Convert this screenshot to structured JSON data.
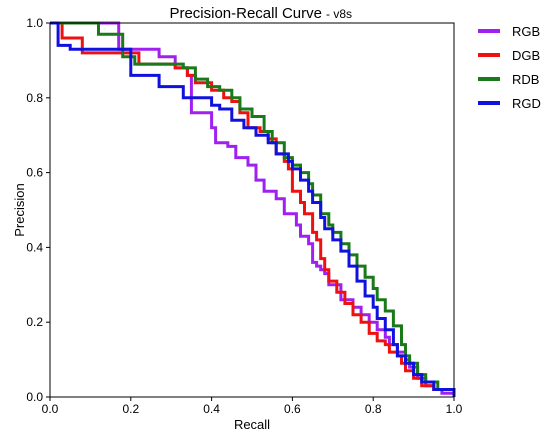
{
  "chart_data": {
    "type": "line",
    "title": "Precision-Recall Curve",
    "subtitle": "- v8s",
    "xlabel": "Recall",
    "ylabel": "Precision",
    "xlim": [
      0,
      1
    ],
    "ylim": [
      0,
      1
    ],
    "xticks": [
      "0.0",
      "0.2",
      "0.4",
      "0.6",
      "0.8",
      "1.0"
    ],
    "yticks": [
      "0.0",
      "0.2",
      "0.4",
      "0.6",
      "0.8",
      "1.0"
    ],
    "grid": false,
    "legend_position": "outside-right-top",
    "series": [
      {
        "name": "RGB",
        "color": "#a020f0",
        "points": [
          [
            0,
            1
          ],
          [
            0.17,
            1
          ],
          [
            0.17,
            0.93
          ],
          [
            0.27,
            0.93
          ],
          [
            0.27,
            0.91
          ],
          [
            0.31,
            0.88
          ],
          [
            0.34,
            0.86
          ],
          [
            0.35,
            0.76
          ],
          [
            0.38,
            0.76
          ],
          [
            0.4,
            0.72
          ],
          [
            0.41,
            0.68
          ],
          [
            0.44,
            0.67
          ],
          [
            0.46,
            0.64
          ],
          [
            0.49,
            0.62
          ],
          [
            0.51,
            0.58
          ],
          [
            0.53,
            0.55
          ],
          [
            0.56,
            0.53
          ],
          [
            0.58,
            0.49
          ],
          [
            0.61,
            0.46
          ],
          [
            0.62,
            0.43
          ],
          [
            0.64,
            0.41
          ],
          [
            0.65,
            0.36
          ],
          [
            0.66,
            0.35
          ],
          [
            0.67,
            0.34
          ],
          [
            0.68,
            0.33
          ],
          [
            0.69,
            0.3
          ],
          [
            0.71,
            0.3
          ],
          [
            0.72,
            0.26
          ],
          [
            0.74,
            0.26
          ],
          [
            0.75,
            0.24
          ],
          [
            0.77,
            0.22
          ],
          [
            0.79,
            0.2
          ],
          [
            0.81,
            0.18
          ],
          [
            0.83,
            0.16
          ],
          [
            0.84,
            0.14
          ],
          [
            0.86,
            0.12
          ],
          [
            0.88,
            0.1
          ],
          [
            0.89,
            0.08
          ],
          [
            0.91,
            0.05
          ],
          [
            0.93,
            0.03
          ],
          [
            0.95,
            0.02
          ],
          [
            0.97,
            0.01
          ],
          [
            1.0,
            0
          ]
        ]
      },
      {
        "name": "DGB",
        "color": "#ee1111",
        "points": [
          [
            0,
            1
          ],
          [
            0.03,
            1
          ],
          [
            0.03,
            0.96
          ],
          [
            0.08,
            0.96
          ],
          [
            0.08,
            0.92
          ],
          [
            0.19,
            0.92
          ],
          [
            0.22,
            0.89
          ],
          [
            0.27,
            0.89
          ],
          [
            0.31,
            0.88
          ],
          [
            0.34,
            0.86
          ],
          [
            0.36,
            0.84
          ],
          [
            0.4,
            0.82
          ],
          [
            0.43,
            0.8
          ],
          [
            0.45,
            0.79
          ],
          [
            0.47,
            0.76
          ],
          [
            0.49,
            0.72
          ],
          [
            0.52,
            0.71
          ],
          [
            0.54,
            0.69
          ],
          [
            0.56,
            0.65
          ],
          [
            0.58,
            0.63
          ],
          [
            0.59,
            0.61
          ],
          [
            0.6,
            0.55
          ],
          [
            0.62,
            0.52
          ],
          [
            0.63,
            0.49
          ],
          [
            0.65,
            0.44
          ],
          [
            0.66,
            0.42
          ],
          [
            0.67,
            0.37
          ],
          [
            0.68,
            0.34
          ],
          [
            0.69,
            0.31
          ],
          [
            0.71,
            0.28
          ],
          [
            0.73,
            0.25
          ],
          [
            0.75,
            0.22
          ],
          [
            0.77,
            0.2
          ],
          [
            0.79,
            0.17
          ],
          [
            0.81,
            0.15
          ],
          [
            0.83,
            0.14
          ],
          [
            0.84,
            0.12
          ],
          [
            0.86,
            0.11
          ],
          [
            0.87,
            0.09
          ],
          [
            0.88,
            0.07
          ],
          [
            0.9,
            0.05
          ],
          [
            0.92,
            0.03
          ],
          [
            0.95,
            0.02
          ],
          [
            1.0,
            0
          ]
        ]
      },
      {
        "name": "RDB",
        "color": "#1a7a1a",
        "points": [
          [
            0,
            1
          ],
          [
            0.12,
            1
          ],
          [
            0.12,
            0.97
          ],
          [
            0.17,
            0.97
          ],
          [
            0.18,
            0.91
          ],
          [
            0.21,
            0.89
          ],
          [
            0.27,
            0.89
          ],
          [
            0.33,
            0.88
          ],
          [
            0.36,
            0.85
          ],
          [
            0.39,
            0.83
          ],
          [
            0.42,
            0.82
          ],
          [
            0.45,
            0.8
          ],
          [
            0.47,
            0.77
          ],
          [
            0.5,
            0.75
          ],
          [
            0.53,
            0.71
          ],
          [
            0.55,
            0.68
          ],
          [
            0.58,
            0.64
          ],
          [
            0.6,
            0.62
          ],
          [
            0.62,
            0.6
          ],
          [
            0.64,
            0.57
          ],
          [
            0.65,
            0.54
          ],
          [
            0.67,
            0.49
          ],
          [
            0.69,
            0.46
          ],
          [
            0.7,
            0.44
          ],
          [
            0.72,
            0.41
          ],
          [
            0.74,
            0.38
          ],
          [
            0.76,
            0.35
          ],
          [
            0.78,
            0.32
          ],
          [
            0.8,
            0.29
          ],
          [
            0.81,
            0.26
          ],
          [
            0.83,
            0.23
          ],
          [
            0.85,
            0.19
          ],
          [
            0.87,
            0.14
          ],
          [
            0.88,
            0.11
          ],
          [
            0.89,
            0.09
          ],
          [
            0.91,
            0.06
          ],
          [
            0.93,
            0.04
          ],
          [
            0.96,
            0.02
          ],
          [
            1.0,
            0
          ]
        ]
      },
      {
        "name": "RGD",
        "color": "#1111dd",
        "points": [
          [
            0,
            1
          ],
          [
            0.02,
            1
          ],
          [
            0.02,
            0.94
          ],
          [
            0.05,
            0.93
          ],
          [
            0.19,
            0.93
          ],
          [
            0.2,
            0.86
          ],
          [
            0.25,
            0.86
          ],
          [
            0.27,
            0.83
          ],
          [
            0.31,
            0.83
          ],
          [
            0.33,
            0.8
          ],
          [
            0.37,
            0.8
          ],
          [
            0.4,
            0.78
          ],
          [
            0.42,
            0.77
          ],
          [
            0.45,
            0.74
          ],
          [
            0.48,
            0.72
          ],
          [
            0.51,
            0.7
          ],
          [
            0.54,
            0.68
          ],
          [
            0.56,
            0.65
          ],
          [
            0.59,
            0.63
          ],
          [
            0.6,
            0.61
          ],
          [
            0.62,
            0.58
          ],
          [
            0.64,
            0.55
          ],
          [
            0.65,
            0.52
          ],
          [
            0.67,
            0.48
          ],
          [
            0.68,
            0.45
          ],
          [
            0.7,
            0.42
          ],
          [
            0.72,
            0.39
          ],
          [
            0.74,
            0.35
          ],
          [
            0.76,
            0.31
          ],
          [
            0.78,
            0.27
          ],
          [
            0.8,
            0.24
          ],
          [
            0.81,
            0.21
          ],
          [
            0.83,
            0.18
          ],
          [
            0.85,
            0.14
          ],
          [
            0.86,
            0.11
          ],
          [
            0.88,
            0.09
          ],
          [
            0.9,
            0.06
          ],
          [
            0.92,
            0.04
          ],
          [
            0.95,
            0.02
          ],
          [
            1.0,
            0
          ]
        ]
      }
    ]
  }
}
